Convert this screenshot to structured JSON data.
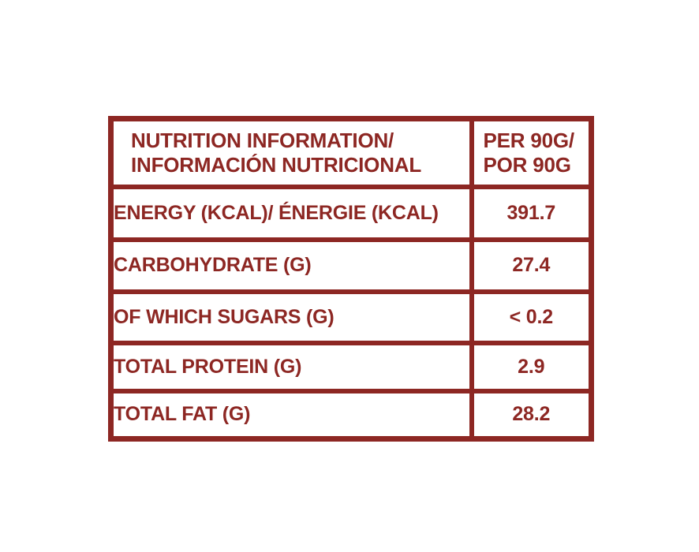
{
  "accent_color": "#8D2723",
  "background_color": "#FFFFFF",
  "table": {
    "header": {
      "label_line1": "NUTRITION INFORMATION/",
      "label_line2": "INFORMACIÓN NUTRICIONAL",
      "value_line1": "PER 90G/",
      "value_line2": "POR 90G"
    },
    "rows": [
      {
        "label": "ENERGY (KCAL)/ ÉNERGIE (KCAL)",
        "value": "391.7"
      },
      {
        "label": "CARBOHYDRATE (G)",
        "value": "27.4"
      },
      {
        "label": "OF WHICH SUGARS (G)",
        "value": "< 0.2"
      },
      {
        "label": "TOTAL PROTEIN (G)",
        "value": "2.9"
      },
      {
        "label": "TOTAL FAT (G)",
        "value": "28.2"
      }
    ]
  }
}
